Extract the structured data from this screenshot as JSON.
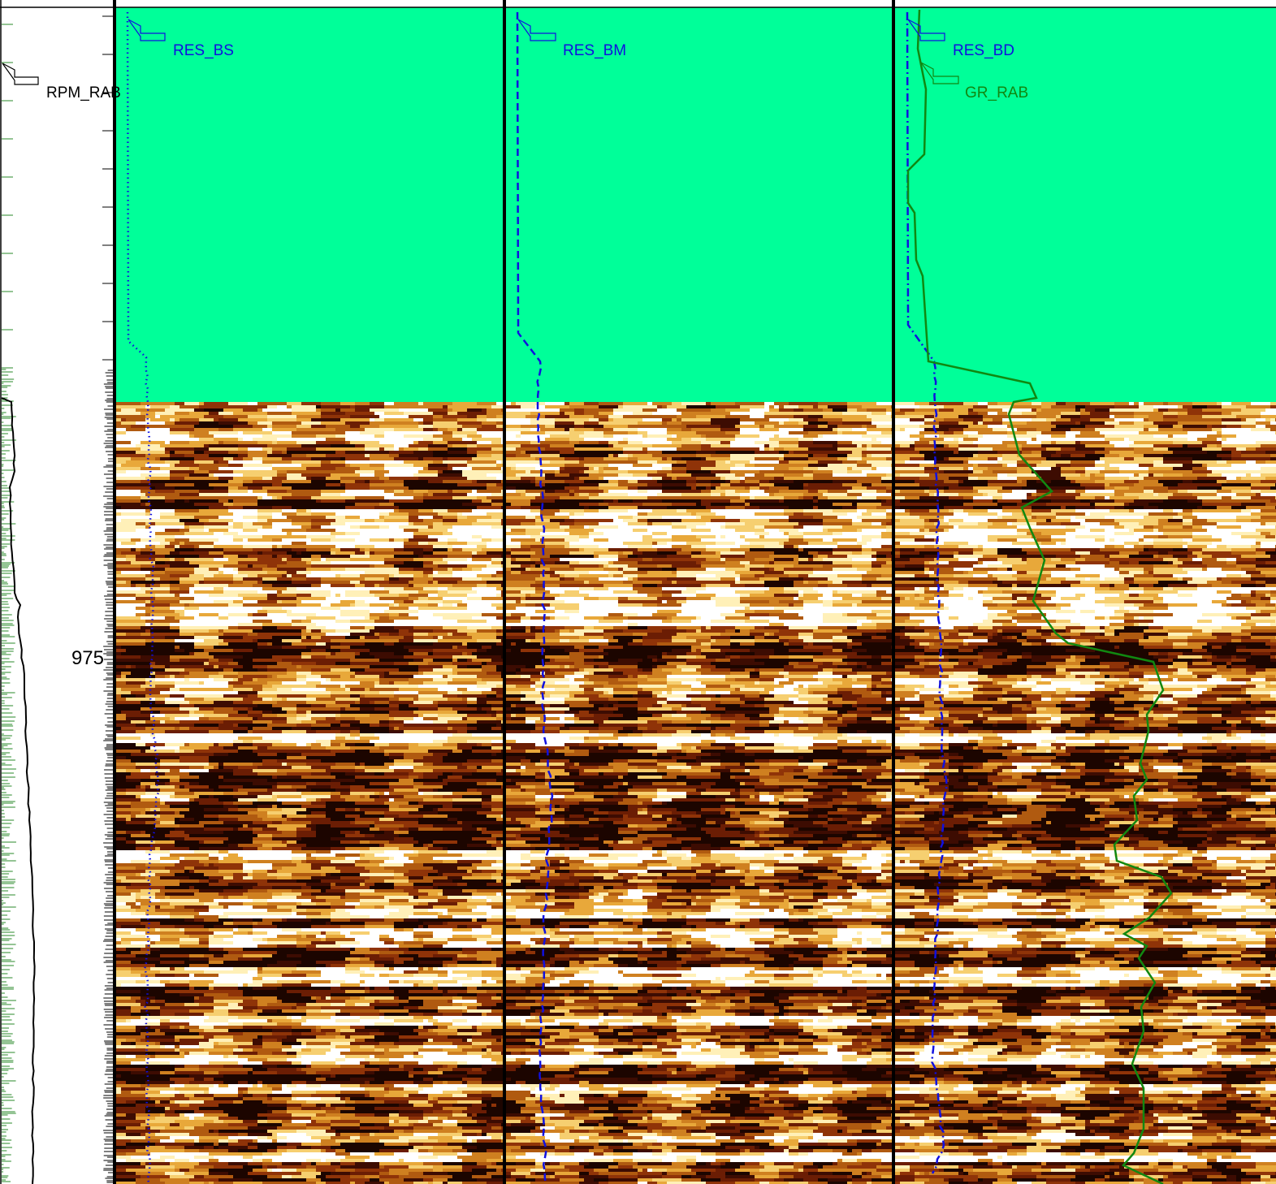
{
  "colors": {
    "fill_above_image": "#00ff99",
    "res_curves": "#1010e0",
    "gr_curve": "#118811",
    "rpm_curve": "#000000",
    "tick_green": "#2a8a2a",
    "track_border": "#000000",
    "image_palette": [
      "#1c0500",
      "#3d0c02",
      "#6b1d04",
      "#8f3308",
      "#b05a10",
      "#cf8020",
      "#e8a83a",
      "#f6cf70",
      "#fff0b8",
      "#ffffff"
    ]
  },
  "chart_data": {
    "type": "borehole-image-log",
    "depth_axis": {
      "labels": [
        "975"
      ],
      "direction": "down"
    },
    "tracks": [
      {
        "name": "depth-and-rpm-track",
        "curves": [
          {
            "name": "RPM_RAB",
            "style": "solid",
            "color": "#000000"
          }
        ],
        "image": false
      },
      {
        "name": "shallow-image-track",
        "curves": [
          {
            "name": "RES_BS",
            "style": "dotted",
            "color": "#1010e0"
          }
        ],
        "image": true
      },
      {
        "name": "medium-image-track",
        "curves": [
          {
            "name": "RES_BM",
            "style": "dashed",
            "color": "#1010e0"
          }
        ],
        "image": true
      },
      {
        "name": "deep-image-track",
        "curves": [
          {
            "name": "RES_BD",
            "style": "dash-dot",
            "color": "#1010e0"
          },
          {
            "name": "GR_RAB",
            "style": "solid",
            "color": "#118811"
          }
        ],
        "image": true
      }
    ]
  }
}
